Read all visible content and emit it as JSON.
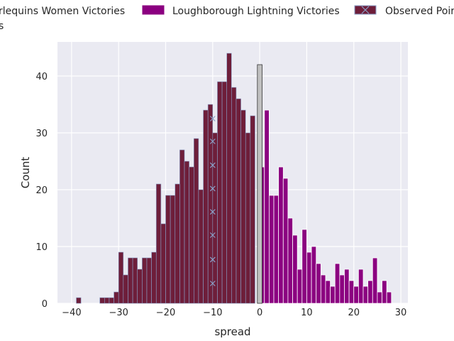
{
  "chart_data": {
    "type": "bar",
    "xlabel": "spread",
    "ylabel": "Count",
    "xlim": [
      -43,
      31.5
    ],
    "ylim": [
      0,
      46
    ],
    "xticks": [
      -40,
      -30,
      -20,
      -10,
      0,
      10,
      20,
      30
    ],
    "xtick_labels": [
      "−40",
      "−30",
      "−20",
      "−10",
      "0",
      "10",
      "20",
      "30"
    ],
    "yticks": [
      0,
      10,
      20,
      30,
      40
    ],
    "ytick_labels": [
      "0",
      "10",
      "20",
      "30",
      "40"
    ],
    "grid": true,
    "legend_placement": "top, above plot",
    "legend_overflow_text": "s",
    "background_color": "#EAEAF2",
    "series": [
      {
        "name": "Harlequins Women Victories",
        "legend_visible_text": "rlequins Women Victories",
        "color": "#6E1E3A",
        "edge_color": "#8AA0C8",
        "bin_width": 1,
        "x": [
          -39,
          -34,
          -33,
          -32,
          -31,
          -30,
          -29,
          -28,
          -27,
          -26,
          -25,
          -24,
          -23,
          -22,
          -21,
          -20,
          -19,
          -18,
          -17,
          -16,
          -15,
          -14,
          -13,
          -12,
          -11,
          -10,
          -9,
          -8,
          -7,
          -6,
          -5,
          -4,
          -3,
          -2,
          -1
        ],
        "values": [
          1,
          1,
          1,
          1,
          2,
          9,
          5,
          8,
          8,
          6,
          8,
          8,
          9,
          21,
          14,
          19,
          19,
          21,
          27,
          25,
          24,
          29,
          20,
          34,
          35,
          30,
          39,
          39,
          44,
          38,
          36,
          34,
          30,
          33,
          0
        ]
      },
      {
        "name": "Loughborough Lightning Victories",
        "legend_visible_text": "Loughborough Lightning Victories",
        "color": "#8B0080",
        "edge_color": "#ffffff",
        "bin_width": 1,
        "x": [
          0,
          1,
          2,
          3,
          4,
          5,
          6,
          7,
          8,
          9,
          10,
          11,
          12,
          13,
          14,
          15,
          16,
          17,
          18,
          19,
          20,
          21,
          22,
          23,
          24,
          25,
          26,
          27
        ],
        "values": [
          24,
          34,
          19,
          19,
          24,
          22,
          15,
          12,
          6,
          13,
          9,
          10,
          7,
          5,
          4,
          3,
          7,
          5,
          6,
          4,
          3,
          6,
          3,
          4,
          8,
          2,
          4,
          2
        ]
      },
      {
        "name": "Observed Points",
        "legend_visible_text": "Observed Poir",
        "color": "#8AA0C8",
        "marker": "x",
        "x": [
          -10,
          -10,
          -10,
          -10,
          -10,
          -10,
          -10,
          -10
        ],
        "y": [
          32.5,
          28.5,
          24.3,
          20.2,
          16.1,
          12,
          7.7,
          3.5
        ]
      }
    ],
    "highlight_bar": {
      "x": -0.5,
      "width": 1,
      "value": 42,
      "color": "#C0C0C0",
      "edge_color": "#333333"
    }
  }
}
